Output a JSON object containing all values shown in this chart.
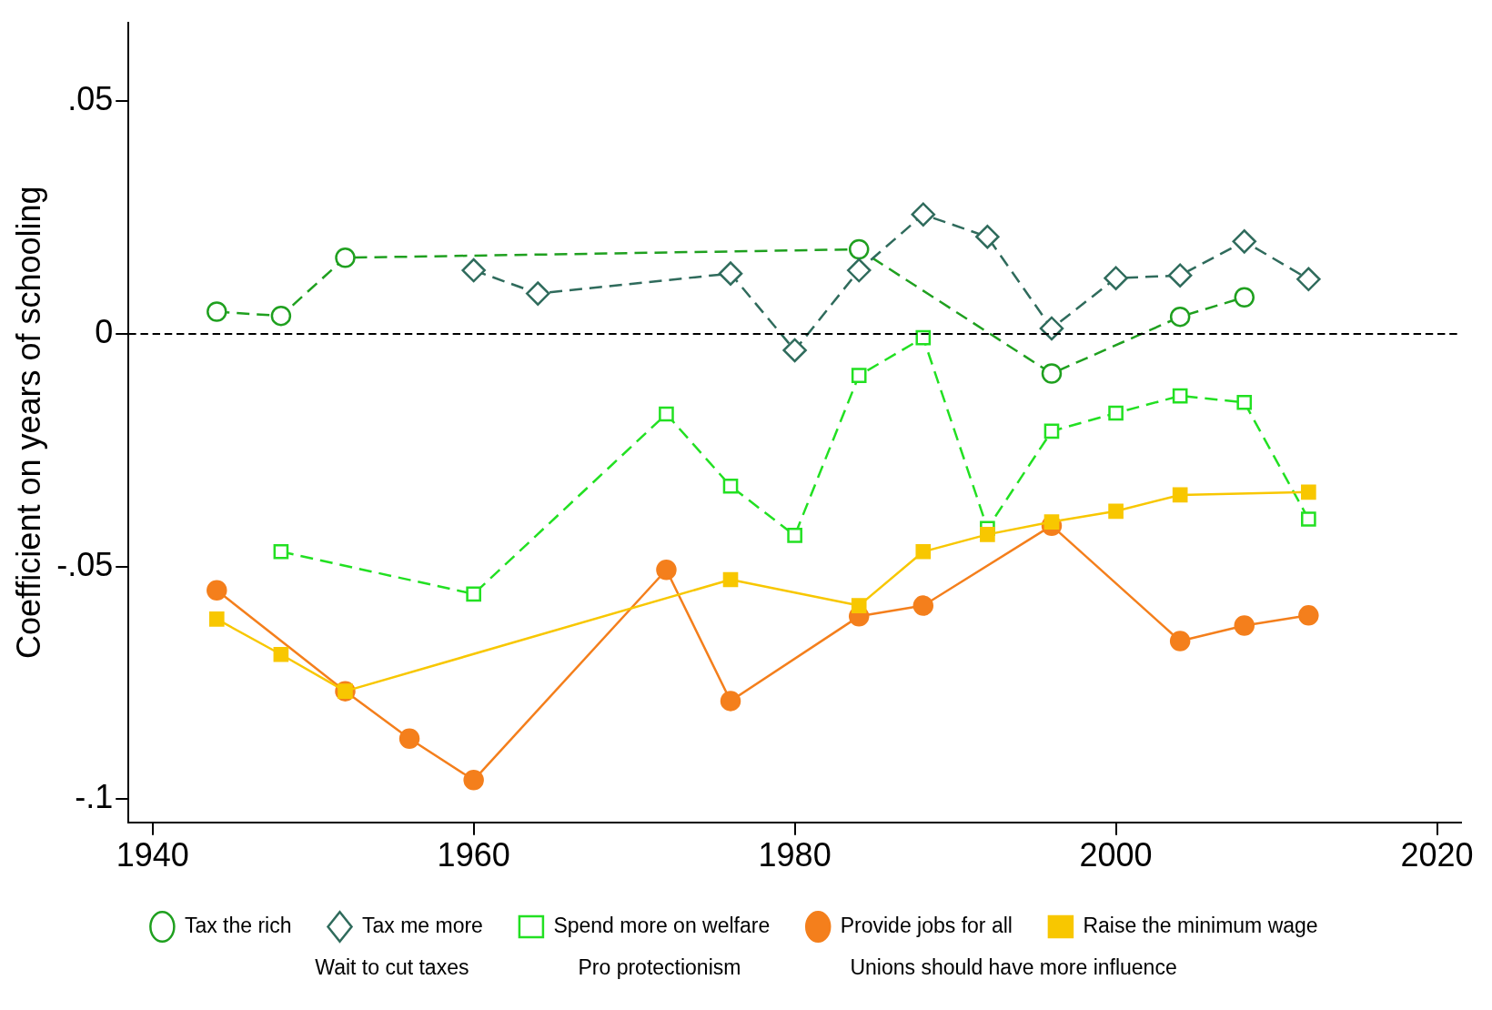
{
  "chart_data": {
    "type": "line",
    "ylabel": "Coefficient on years of schooling",
    "xlim": [
      1938.5,
      2021.5
    ],
    "xticks": [
      1940,
      1960,
      1980,
      2000,
      2020
    ],
    "ylim": [
      -0.105,
      0.067
    ],
    "yticks": [
      {
        "value": 0.05,
        "label": ".05"
      },
      {
        "value": 0,
        "label": "0"
      },
      {
        "value": -0.05,
        "label": "-.05"
      },
      {
        "value": -0.1,
        "label": "-.1"
      }
    ],
    "grid": false,
    "legend": "bottom",
    "annotations": [
      "Wait to cut taxes",
      "Pro protectionism",
      "Unions should have more influence"
    ],
    "ref_lines": [
      {
        "axis": "y",
        "value": 0,
        "color": "#000000",
        "line_style": "dashed"
      }
    ],
    "series": [
      {
        "name": "Tax the rich",
        "color": "#1fa01f",
        "marker": "circle",
        "line_style": "dashed",
        "x": [
          1944,
          1948,
          1952,
          1984,
          1996,
          2004,
          2008
        ],
        "values": [
          0.0048,
          0.0039,
          0.0164,
          0.0182,
          -0.0085,
          0.0037,
          0.0079
        ]
      },
      {
        "name": "Tax me more",
        "color": "#2f6b5c",
        "marker": "diamond",
        "line_style": "dashed",
        "x": [
          1960,
          1964,
          1976,
          1980,
          1984,
          1988,
          1992,
          1996,
          2000,
          2004,
          2008,
          2012
        ],
        "values": [
          0.0137,
          0.0087,
          0.013,
          -0.0035,
          0.0137,
          0.0257,
          0.0209,
          0.0012,
          0.012,
          0.0126,
          0.0199,
          0.0118
        ]
      },
      {
        "name": "Spend more on welfare",
        "color": "#22e022",
        "marker": "square",
        "line_style": "dashed",
        "x": [
          1948,
          1960,
          1972,
          1976,
          1980,
          1984,
          1988,
          1992,
          1996,
          2000,
          2004,
          2008,
          2012
        ],
        "values": [
          -0.0468,
          -0.0559,
          -0.0172,
          -0.0327,
          -0.0433,
          -0.0089,
          -0.0008,
          -0.0418,
          -0.0209,
          -0.017,
          -0.0133,
          -0.0147,
          -0.0398
        ]
      },
      {
        "name": "Provide jobs for all",
        "color": "#f47f1c",
        "marker": "circle",
        "line_style": "solid",
        "x": [
          1944,
          1952,
          1956,
          1960,
          1972,
          1976,
          1984,
          1988,
          1996,
          2004,
          2008,
          2012
        ],
        "values": [
          -0.0551,
          -0.0768,
          -0.087,
          -0.0959,
          -0.0507,
          -0.0789,
          -0.0607,
          -0.0584,
          -0.0412,
          -0.066,
          -0.0627,
          -0.0605
        ]
      },
      {
        "name": "Raise the minimum wage",
        "color": "#f8c700",
        "marker": "square",
        "line_style": "solid",
        "x": [
          1944,
          1948,
          1952,
          1976,
          1984,
          1988,
          1992,
          1996,
          2000,
          2004,
          2012
        ],
        "values": [
          -0.0613,
          -0.0689,
          -0.0768,
          -0.0528,
          -0.0584,
          -0.0468,
          -0.0431,
          -0.0404,
          -0.0381,
          -0.0346,
          -0.034
        ]
      }
    ]
  }
}
